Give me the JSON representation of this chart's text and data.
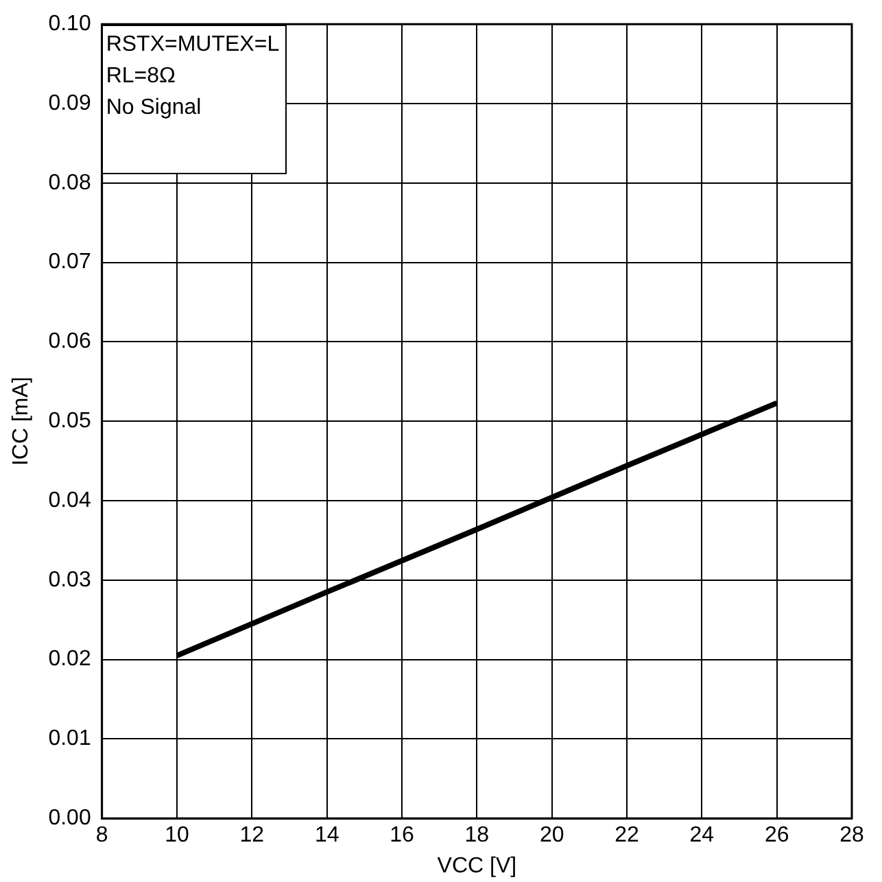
{
  "chart_data": {
    "type": "line",
    "xlabel": "VCC [V]",
    "ylabel": "ICC [mA]",
    "x": [
      10,
      14,
      18,
      22,
      26
    ],
    "series": [
      {
        "color": "#000000",
        "values": [
          0.0205,
          0.0285,
          0.0364,
          0.0444,
          0.0523
        ]
      }
    ],
    "xlim": [
      8,
      28
    ],
    "xticks": [
      8,
      10,
      12,
      14,
      16,
      18,
      20,
      22,
      24,
      26,
      28
    ],
    "ylim": [
      0,
      0.1
    ],
    "yticks": [
      {
        "value": 0,
        "label": "0.00"
      },
      {
        "value": 0.01,
        "label": "0.01"
      },
      {
        "value": 0.02,
        "label": "0.02"
      },
      {
        "value": 0.03,
        "label": "0.03"
      },
      {
        "value": 0.04,
        "label": "0.04"
      },
      {
        "value": 0.05,
        "label": "0.05"
      },
      {
        "value": 0.06,
        "label": "0.06"
      },
      {
        "value": 0.07,
        "label": "0.07"
      },
      {
        "value": 0.08,
        "label": "0.08"
      },
      {
        "value": 0.09,
        "label": "0.09"
      },
      {
        "value": 0.1,
        "label": "0.10"
      }
    ],
    "grid": true,
    "legend": false,
    "marker": "none",
    "line_style": "solid",
    "annotations": [
      "RSTX=MUTEX=L",
      "RL=8Ω",
      "No Signal"
    ]
  }
}
